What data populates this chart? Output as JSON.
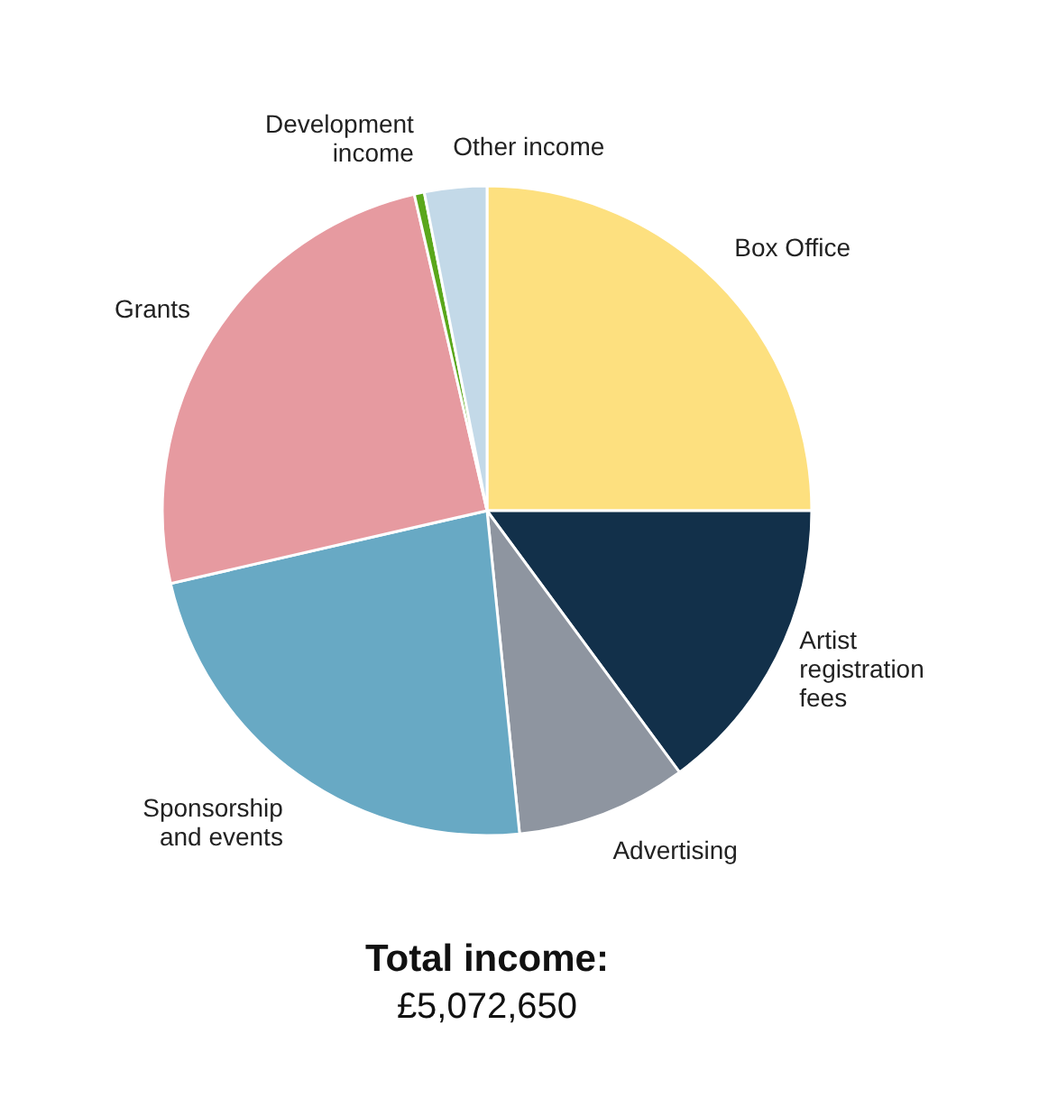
{
  "chart_data": {
    "type": "pie",
    "title": "Total income:",
    "subtitle": "£5,072,650",
    "categories": [
      "Box Office",
      "Artist registration fees",
      "Advertising",
      "Sponsorship and events",
      "Grants",
      "Development income",
      "Other income"
    ],
    "values": [
      25,
      14.9,
      8.5,
      23,
      25,
      0.5,
      3.1
    ],
    "colors": [
      "#fde07f",
      "#12304a",
      "#8e95a0",
      "#68a9c4",
      "#e69aa0",
      "#5aa71b",
      "#c3d9e8"
    ],
    "legend": false
  }
}
